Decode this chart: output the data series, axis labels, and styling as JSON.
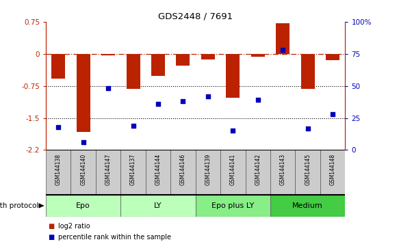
{
  "title": "GDS2448 / 7691",
  "samples": [
    "GSM144138",
    "GSM144140",
    "GSM144147",
    "GSM144137",
    "GSM144144",
    "GSM144146",
    "GSM144139",
    "GSM144141",
    "GSM144142",
    "GSM144143",
    "GSM144145",
    "GSM144148"
  ],
  "log2_ratio": [
    -0.58,
    -1.82,
    -0.03,
    -0.82,
    -0.52,
    -0.28,
    -0.13,
    -1.02,
    -0.07,
    0.72,
    -0.82,
    -0.15
  ],
  "percentile_rank": [
    18,
    6,
    48,
    19,
    36,
    38,
    42,
    15,
    39,
    78,
    17,
    28
  ],
  "groups": [
    {
      "label": "Epo",
      "start": 0,
      "end": 3,
      "color": "#bbffbb"
    },
    {
      "label": "LY",
      "start": 3,
      "end": 6,
      "color": "#bbffbb"
    },
    {
      "label": "Epo plus LY",
      "start": 6,
      "end": 9,
      "color": "#88ee88"
    },
    {
      "label": "Medium",
      "start": 9,
      "end": 12,
      "color": "#44cc44"
    }
  ],
  "bar_color": "#bb2200",
  "dot_color": "#0000bb",
  "ylim_left": [
    -2.25,
    0.75
  ],
  "ylim_right": [
    0,
    100
  ],
  "yticks_left": [
    -2.25,
    -1.5,
    -0.75,
    0,
    0.75
  ],
  "yticks_right": [
    0,
    25,
    50,
    75,
    100
  ],
  "hline_y": 0,
  "dotted_lines": [
    -0.75,
    -1.5
  ],
  "bar_width": 0.55,
  "legend_log2": "log2 ratio",
  "legend_pct": "percentile rank within the sample",
  "growth_protocol_label": "growth protocol"
}
